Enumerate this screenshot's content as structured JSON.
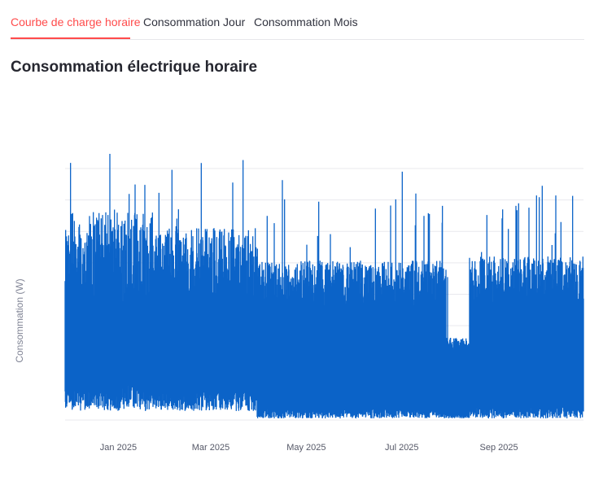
{
  "tabs": [
    {
      "label": "Courbe de charge horaire",
      "active": true
    },
    {
      "label": "Consommation Jour",
      "active": false
    },
    {
      "label": "Consommation Mois",
      "active": false
    }
  ],
  "accent_color": "#ff4b4b",
  "series_color": "#0b63c8",
  "page_title": "Consommation électrique horaire",
  "chart_data": {
    "type": "line",
    "ylabel": "Consommation (W)",
    "xlabel": "",
    "x_range": [
      "2024-11-28",
      "2025-10-25"
    ],
    "x_ticks": [
      {
        "date": "2025-01-01",
        "label": "Jan 2025"
      },
      {
        "date": "2025-03-01",
        "label": "Mar 2025"
      },
      {
        "date": "2025-05-01",
        "label": "May 2025"
      },
      {
        "date": "2025-07-01",
        "label": "Jul 2025"
      },
      {
        "date": "2025-09-01",
        "label": "Sep 2025"
      }
    ],
    "grid": true,
    "legend": "none"
  }
}
